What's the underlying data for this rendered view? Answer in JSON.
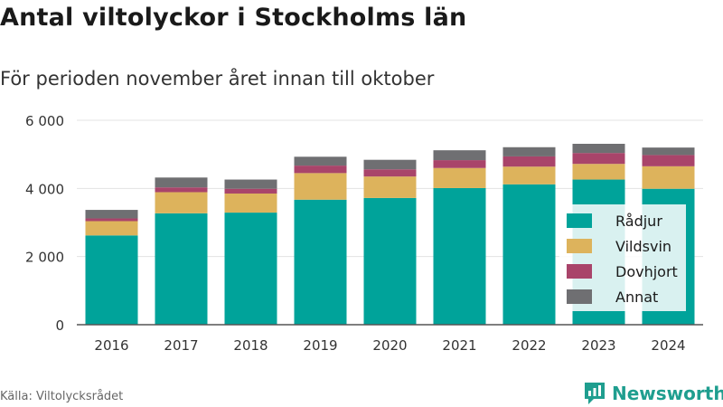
{
  "title": "Antal viltolyckor i Stockholms län",
  "subtitle": "För perioden november året innan till oktober",
  "source": "Källa: Viltolycksrådet",
  "brand": {
    "name": "Newsworthy",
    "color": "#1f9e8f"
  },
  "chart_data": {
    "type": "bar",
    "stacked": true,
    "title": "Antal viltolyckor i Stockholms län",
    "subtitle": "För perioden november året innan till oktober",
    "categories": [
      "2016",
      "2017",
      "2018",
      "2019",
      "2020",
      "2021",
      "2022",
      "2023",
      "2024"
    ],
    "series": [
      {
        "name": "Rådjur",
        "color": "#00a39a",
        "values": [
          2620,
          3270,
          3290,
          3670,
          3720,
          4010,
          4120,
          4260,
          3990
        ]
      },
      {
        "name": "Vildsvin",
        "color": "#ddb35c",
        "values": [
          420,
          620,
          560,
          780,
          630,
          590,
          520,
          460,
          660
        ]
      },
      {
        "name": "Dovhjort",
        "color": "#a9446a",
        "values": [
          80,
          140,
          140,
          220,
          210,
          230,
          300,
          320,
          330
        ]
      },
      {
        "name": "Annat",
        "color": "#6f6f72",
        "values": [
          250,
          290,
          270,
          260,
          280,
          290,
          270,
          270,
          220
        ]
      }
    ],
    "ylim": [
      0,
      6000
    ],
    "yticks": [
      0,
      2000,
      4000,
      6000
    ],
    "ytick_labels": [
      "0",
      "2 000",
      "4 000",
      "6 000"
    ],
    "xlabel": "",
    "ylabel": "",
    "grid": "horizontal",
    "legend_position": "right"
  }
}
